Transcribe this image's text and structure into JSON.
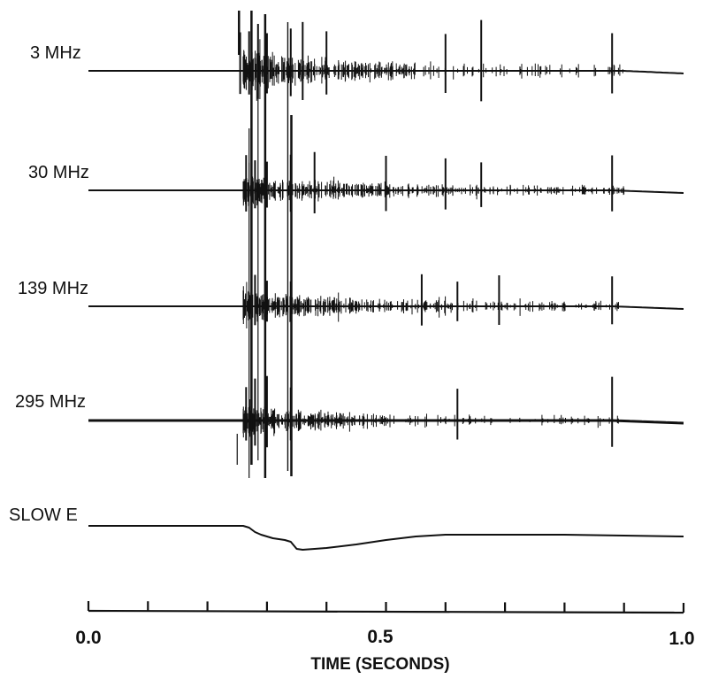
{
  "chart_data": {
    "type": "line",
    "xlabel": "TIME (SECONDS)",
    "xlim": [
      0.0,
      1.0
    ],
    "x_tick_labels": [
      "0.0",
      "0.5",
      "1.0"
    ],
    "x_ticks": [
      0.0,
      0.1,
      0.2,
      0.3,
      0.4,
      0.5,
      0.6,
      0.7,
      0.8,
      0.9,
      1.0
    ],
    "grid": false,
    "legend": "none",
    "colors": {
      "trace": "#111111",
      "background": "#ffffff"
    },
    "series": [
      {
        "name": "3 MHz",
        "baseline_drift": [
          [
            0.0,
            0.0
          ],
          [
            0.9,
            0.0
          ],
          [
            1.0,
            3
          ]
        ],
        "activity": {
          "start": 0.26,
          "dense_end": 0.55,
          "sparse_end": 0.9
        },
        "strong_pulses": [
          0.255,
          0.27,
          0.285,
          0.3,
          0.34,
          0.36,
          0.4,
          0.6,
          0.66,
          0.88
        ],
        "pulse_amplitude": 60
      },
      {
        "name": "30 MHz",
        "baseline_drift": [
          [
            0.0,
            0.0
          ],
          [
            0.88,
            0.0
          ],
          [
            1.0,
            3
          ]
        ],
        "activity": {
          "start": 0.26,
          "dense_end": 0.62,
          "sparse_end": 0.9
        },
        "strong_pulses": [
          0.265,
          0.28,
          0.3,
          0.34,
          0.38,
          0.5,
          0.6,
          0.66,
          0.88
        ],
        "pulse_amplitude": 45
      },
      {
        "name": "139 MHz",
        "baseline_drift": [
          [
            0.0,
            0.0
          ],
          [
            0.88,
            0.0
          ],
          [
            1.0,
            3
          ]
        ],
        "activity": {
          "start": 0.26,
          "dense_end": 0.62,
          "sparse_end": 0.9
        },
        "strong_pulses": [
          0.28,
          0.3,
          0.34,
          0.56,
          0.62,
          0.69,
          0.88
        ],
        "pulse_amplitude": 42
      },
      {
        "name": "295 MHz",
        "baseline_drift": [
          [
            0.0,
            0.0
          ],
          [
            0.88,
            0.0
          ],
          [
            1.0,
            3
          ]
        ],
        "activity": {
          "start": 0.26,
          "dense_end": 0.5,
          "sparse_end": 0.9
        },
        "strong_pulses": [
          0.265,
          0.28,
          0.3,
          0.34,
          0.62,
          0.88
        ],
        "pulse_amplitude": 55
      },
      {
        "name": "SLOW E",
        "points": [
          [
            0.0,
            0.0
          ],
          [
            0.26,
            0.0
          ],
          [
            0.27,
            -2
          ],
          [
            0.28,
            -7
          ],
          [
            0.29,
            -10
          ],
          [
            0.31,
            -14
          ],
          [
            0.33,
            -16
          ],
          [
            0.34,
            -18
          ],
          [
            0.35,
            -26
          ],
          [
            0.36,
            -27
          ],
          [
            0.4,
            -25
          ],
          [
            0.45,
            -21
          ],
          [
            0.5,
            -16
          ],
          [
            0.55,
            -12
          ],
          [
            0.6,
            -10
          ],
          [
            0.7,
            -10
          ],
          [
            0.8,
            -10
          ],
          [
            0.9,
            -11
          ],
          [
            1.0,
            -12
          ]
        ]
      }
    ]
  }
}
